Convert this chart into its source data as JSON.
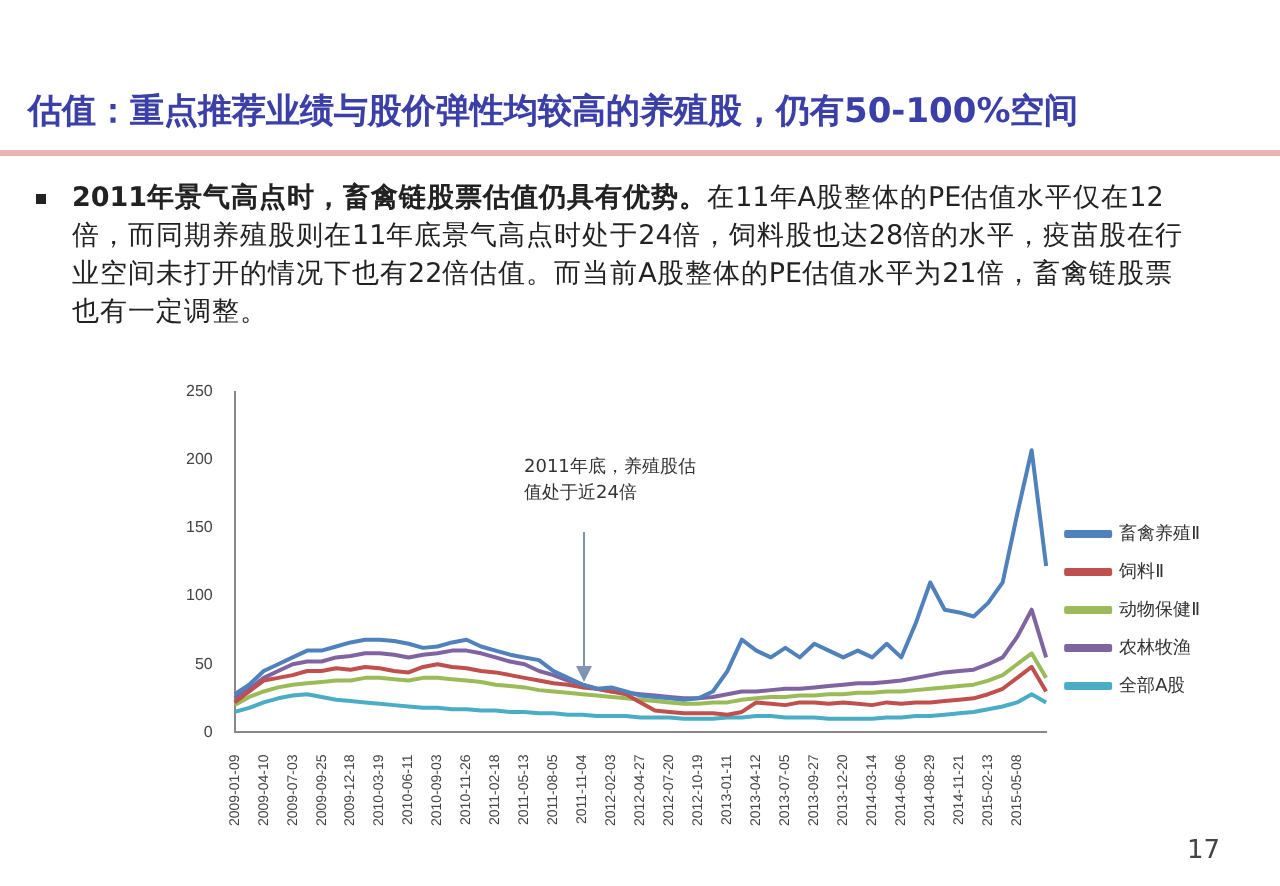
{
  "chart_data": {
    "type": "line",
    "title": "估值：重点推荐业绩与股价弹性均较高的养殖股，仍有50-100%空间",
    "annotations": [
      "2011年景气高点时，畜禽链股票估值仍具有优势。",
      "在11年A股整体的PE估值水平仅在12倍，而同期养殖股则在11年底景气高点时处于24倍，饲料股也达28倍的水平，疫苗股在行业空间未打开的情况下也有22倍估值。而当前A股整体的PE估值水平为21倍，畜禽链股票也有一定调整。",
      "17",
      "2011年底，养殖股估值处于近24倍"
    ],
    "categories": [
      "2009-01-09",
      null,
      "2009-04-10",
      null,
      "2009-07-03",
      null,
      "2009-09-25",
      null,
      "2009-12-18",
      null,
      "2010-03-19",
      null,
      "2010-06-11",
      null,
      "2010-09-03",
      null,
      "2010-11-26",
      null,
      "2011-02-18",
      null,
      "2011-05-13",
      null,
      "2011-08-05",
      null,
      "2011-11-04",
      null,
      "2012-02-03",
      null,
      "2012-04-27",
      null,
      "2012-07-20",
      null,
      "2012-10-19",
      null,
      "2013-01-11",
      null,
      "2013-04-12",
      null,
      "2013-07-05",
      null,
      "2013-09-27",
      null,
      "2013-12-20",
      null,
      "2014-03-14",
      null,
      "2014-06-06",
      null,
      "2014-08-29",
      null,
      "2014-11-21",
      null,
      "2015-02-13",
      null,
      "2015-05-08",
      null,
      null
    ],
    "series": [
      {
        "name": "畜禽养殖Ⅱ",
        "color": "#4f81bd",
        "values": [
          28,
          35,
          45,
          50,
          55,
          60,
          60,
          63,
          66,
          68,
          68,
          67,
          65,
          62,
          63,
          66,
          68,
          63,
          60,
          57,
          55,
          53,
          45,
          40,
          35,
          32,
          33,
          30,
          27,
          26,
          25,
          24,
          25,
          30,
          45,
          68,
          60,
          55,
          62,
          55,
          65,
          60,
          55,
          60,
          55,
          65,
          55,
          80,
          110,
          90,
          88,
          85,
          95,
          110,
          160,
          207,
          122
        ]
      },
      {
        "name": "饲料Ⅱ",
        "color": "#c0504d",
        "values": [
          22,
          30,
          38,
          40,
          42,
          45,
          45,
          47,
          46,
          48,
          47,
          45,
          44,
          48,
          50,
          48,
          47,
          45,
          44,
          42,
          40,
          38,
          36,
          35,
          33,
          32,
          30,
          28,
          22,
          16,
          15,
          14,
          14,
          14,
          13,
          15,
          22,
          21,
          20,
          22,
          22,
          21,
          22,
          21,
          20,
          22,
          21,
          22,
          22,
          23,
          24,
          25,
          28,
          32,
          40,
          48,
          30
        ]
      },
      {
        "name": "动物保健Ⅱ",
        "color": "#9bbb59",
        "values": [
          20,
          26,
          30,
          33,
          35,
          36,
          37,
          38,
          38,
          40,
          40,
          39,
          38,
          40,
          40,
          39,
          38,
          37,
          35,
          34,
          33,
          31,
          30,
          29,
          28,
          27,
          26,
          25,
          24,
          23,
          22,
          21,
          21,
          22,
          22,
          24,
          25,
          26,
          26,
          27,
          27,
          28,
          28,
          29,
          29,
          30,
          30,
          31,
          32,
          33,
          34,
          35,
          38,
          42,
          50,
          58,
          40
        ]
      },
      {
        "name": "农林牧渔",
        "color": "#8064a2",
        "values": [
          25,
          32,
          40,
          45,
          50,
          52,
          52,
          55,
          56,
          58,
          58,
          57,
          55,
          57,
          58,
          60,
          60,
          58,
          55,
          52,
          50,
          45,
          42,
          38,
          35,
          32,
          30,
          29,
          28,
          27,
          26,
          25,
          25,
          26,
          28,
          30,
          30,
          31,
          32,
          32,
          33,
          34,
          35,
          36,
          36,
          37,
          38,
          40,
          42,
          44,
          45,
          46,
          50,
          55,
          70,
          90,
          55
        ]
      },
      {
        "name": "全部A股",
        "color": "#4bacc6",
        "values": [
          15,
          18,
          22,
          25,
          27,
          28,
          26,
          24,
          23,
          22,
          21,
          20,
          19,
          18,
          18,
          17,
          17,
          16,
          16,
          15,
          15,
          14,
          14,
          13,
          13,
          12,
          12,
          12,
          11,
          11,
          11,
          10,
          10,
          10,
          11,
          11,
          12,
          12,
          11,
          11,
          11,
          10,
          10,
          10,
          10,
          11,
          11,
          12,
          12,
          13,
          14,
          15,
          17,
          19,
          22,
          28,
          22
        ]
      }
    ],
    "ylim": [
      0,
      250
    ],
    "yticks": [
      0,
      50,
      100,
      150,
      200,
      250
    ],
    "grid": false,
    "legend": "right",
    "marker": "none",
    "line_style": "solid"
  }
}
